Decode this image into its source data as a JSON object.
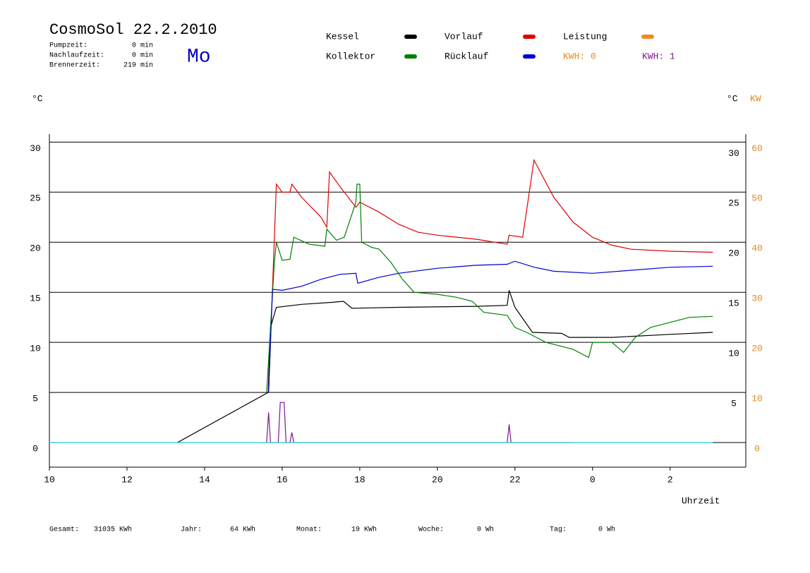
{
  "header": {
    "title": "CosmoSol 22.2.2010",
    "day": "Mo",
    "info": [
      {
        "label": "Pumpzeit:",
        "value": "0 min"
      },
      {
        "label": "Nachlaufzeit:",
        "value": "0 min"
      },
      {
        "label": "Brennerzeit:",
        "value": "219 min"
      }
    ]
  },
  "chart_data": {
    "type": "line",
    "y_unit_left": "°C",
    "y_unit_right": "°C",
    "y2_unit": "KW",
    "xlabel": "Uhrzeit",
    "xlim": [
      10,
      27.95
    ],
    "xticks": [
      10,
      12,
      14,
      16,
      18,
      20,
      22,
      {
        "value": 24,
        "label": "0"
      },
      {
        "value": 26,
        "label": "2"
      }
    ],
    "ylim": [
      -2.46,
      30.8
    ],
    "yticks": [
      0,
      5,
      10,
      15,
      20,
      25,
      30
    ],
    "yticks_right": [
      5,
      10,
      15,
      20,
      25,
      30
    ],
    "y2lim": [
      -4.92,
      61.6
    ],
    "y2ticks": [
      0,
      10,
      20,
      30,
      40,
      50,
      60
    ],
    "y2color": "#e08a1e",
    "grid": true,
    "series": [
      {
        "name": "Kessel",
        "color": "#000000",
        "x": [
          13.3,
          15.64,
          15.7,
          15.85,
          16.5,
          17.3,
          17.58,
          17.8,
          19,
          21,
          21.8,
          21.85,
          22,
          22.45,
          23.2,
          23.4,
          24.5,
          26,
          27.1
        ],
        "values": [
          0,
          5,
          11.5,
          13.5,
          13.8,
          14,
          14.1,
          13.4,
          13.5,
          13.6,
          13.7,
          15.2,
          13.5,
          11,
          10.9,
          10.5,
          10.5,
          10.8,
          11
        ]
      },
      {
        "name": "Vorlauf",
        "color": "#e00000",
        "x": [
          15.65,
          15.85,
          16.0,
          16.2,
          16.25,
          16.5,
          17,
          17.15,
          17.22,
          17.5,
          17.9,
          18.0,
          18.5,
          19,
          19.5,
          20,
          21,
          21.8,
          21.85,
          22.2,
          22.49,
          23,
          23.5,
          24,
          24.5,
          25,
          26,
          27.1
        ],
        "values": [
          5,
          25.8,
          25,
          25,
          25.8,
          24.5,
          22.5,
          21.5,
          27,
          25.5,
          23.5,
          24,
          23,
          21.8,
          21,
          20.7,
          20.3,
          19.8,
          20.7,
          20.5,
          28.2,
          24.5,
          22,
          20.5,
          19.7,
          19.3,
          19.1,
          19.0
        ]
      },
      {
        "name": "Leistung",
        "color": "#f08a1e",
        "x": [],
        "values": []
      },
      {
        "name": "Kollektor",
        "color": "#008000",
        "x": [
          15.6,
          15.8,
          15.85,
          16,
          16.2,
          16.3,
          16.7,
          17.1,
          17.15,
          17.4,
          17.6,
          17.9,
          17.93,
          18.0,
          18.05,
          18.3,
          18.5,
          18.8,
          19.1,
          19.4,
          20,
          20.5,
          20.9,
          21.2,
          21.8,
          22.0,
          22.3,
          22.8,
          23.5,
          23.9,
          24,
          24.5,
          24.8,
          25.1,
          25.5,
          26,
          26.5,
          27.1
        ],
        "values": [
          5,
          18,
          20,
          18.2,
          18.3,
          20.5,
          19.8,
          19.6,
          21.3,
          20.2,
          20.5,
          24,
          25.8,
          25.8,
          20,
          19.5,
          19.3,
          18,
          16.3,
          15,
          14.8,
          14.5,
          14.1,
          13,
          12.7,
          11.5,
          11,
          10,
          9.3,
          8.5,
          10,
          10,
          9,
          10.5,
          11.5,
          12,
          12.5,
          12.6
        ]
      },
      {
        "name": "Rücklauf",
        "color": "#0000d0",
        "x": [
          15.65,
          15.75,
          16,
          16.5,
          17,
          17.5,
          17.9,
          17.95,
          18.5,
          19,
          20,
          21,
          21.8,
          22,
          22.5,
          23,
          24,
          25,
          26,
          27.1
        ],
        "values": [
          5,
          15.3,
          15.2,
          15.6,
          16.3,
          16.8,
          16.9,
          15.9,
          16.5,
          16.9,
          17.4,
          17.7,
          17.8,
          18.1,
          17.5,
          17.1,
          16.9,
          17.2,
          17.5,
          17.6
        ]
      },
      {
        "color": "#7a1a8c",
        "x": [
          15.6,
          15.65,
          15.7,
          15.9,
          15.95,
          16.05,
          16.1,
          16.2,
          16.25,
          16.3,
          21.8,
          21.85,
          21.9,
          23.5
        ],
        "values": [
          0,
          3,
          0,
          0,
          4,
          4,
          0,
          0,
          1,
          0,
          0,
          1.8,
          0,
          0
        ]
      },
      {
        "color": "#30d8d8",
        "x": [
          10,
          27.1
        ],
        "values": [
          0,
          0
        ]
      }
    ],
    "annotations": [
      {
        "text": "KWH: 0",
        "color": "#e08a1e"
      },
      {
        "text": "KWH: 1",
        "color": "#7a1a8c"
      }
    ]
  },
  "footer": [
    {
      "label": "Gesamt:",
      "value": "31035 KWh"
    },
    {
      "label": "Jahr:",
      "value": "64 KWh"
    },
    {
      "label": "Monat:",
      "value": "19 KWh"
    },
    {
      "label": "Woche:",
      "value": "0 Wh"
    },
    {
      "label": "Tag:",
      "value": "0 Wh"
    }
  ]
}
